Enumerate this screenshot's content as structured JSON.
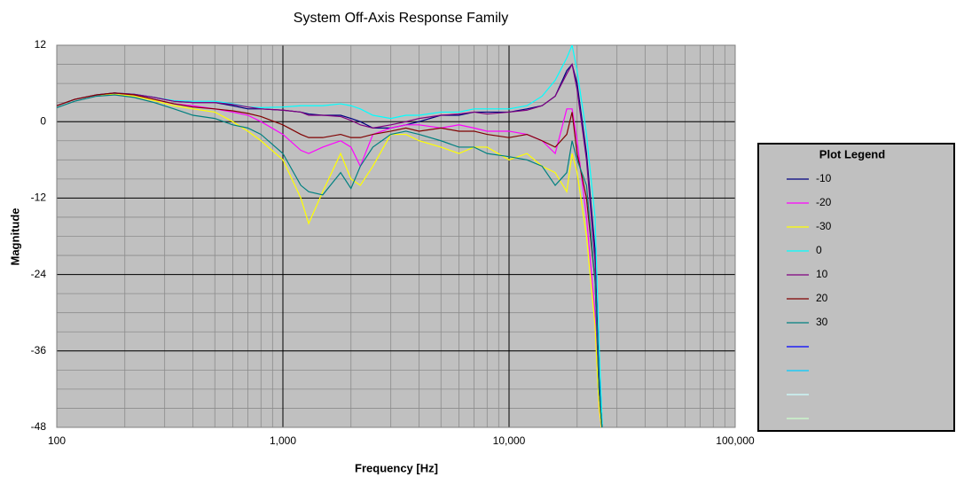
{
  "chart_data": {
    "type": "line",
    "title": "System Off-Axis Response Family",
    "x_label": "Frequency [Hz]",
    "y_label": "Magnitude",
    "xlog": true,
    "grid": true,
    "minor_grid": true,
    "legend": "right",
    "legend_title": "Plot Legend",
    "background": "#c0c0c0",
    "x": [
      100,
      120,
      150,
      180,
      220,
      270,
      330,
      400,
      500,
      600,
      700,
      800,
      1000,
      1200,
      1300,
      1500,
      1800,
      2000,
      2200,
      2500,
      3000,
      3500,
      4000,
      5000,
      6000,
      7000,
      8000,
      10000,
      12000,
      14000,
      16000,
      18000,
      19000,
      20000,
      22000,
      24000,
      25000,
      26000
    ],
    "xlim": [
      100,
      100000
    ],
    "xticks": [
      100,
      {
        "value": 1000,
        "label": "1,000"
      },
      {
        "value": 10000,
        "label": "10,000"
      },
      {
        "value": 100000,
        "label": "100,000"
      }
    ],
    "ylim": [
      -48,
      12
    ],
    "yticks": [
      -48,
      -36,
      -24,
      -12,
      0,
      12
    ],
    "series": [
      {
        "name": "-10",
        "color": "#000080",
        "values": [
          2.5,
          3.5,
          4.2,
          4.5,
          4.3,
          3.8,
          3.2,
          3,
          3,
          2.5,
          2,
          2,
          1.8,
          1.5,
          1.2,
          1,
          1,
          0.5,
          0,
          -1,
          -1,
          -0.5,
          0,
          1,
          1,
          1.5,
          1.5,
          1.5,
          2,
          2.5,
          4,
          8,
          9,
          6,
          -5,
          -20,
          -40,
          -50
        ]
      },
      {
        "name": "-20",
        "color": "#ff00ff",
        "values": [
          2.5,
          3.5,
          4.2,
          4.5,
          4.2,
          3.5,
          2.8,
          2.5,
          2,
          1.5,
          1,
          0,
          -2,
          -4.5,
          -5,
          -4,
          -3,
          -4,
          -7,
          -2,
          -1,
          -0.5,
          -0.5,
          -1,
          -0.5,
          -1,
          -1.5,
          -1.5,
          -2,
          -3,
          -5,
          2,
          2,
          -3,
          -15,
          -30,
          -45,
          -50
        ]
      },
      {
        "name": "-30",
        "color": "#ffff00",
        "values": [
          2.5,
          3.5,
          4.2,
          4.3,
          4,
          3.3,
          2.5,
          2,
          1.5,
          0,
          -1.5,
          -3,
          -6,
          -12,
          -16,
          -11,
          -5,
          -9,
          -10,
          -7,
          -2,
          -2,
          -3,
          -4,
          -5,
          -4,
          -4,
          -6,
          -5,
          -7,
          -8,
          -11,
          -5,
          -8,
          -18,
          -32,
          -45,
          -50
        ]
      },
      {
        "name": "0",
        "color": "#00ffff",
        "values": [
          2.5,
          3.5,
          4.2,
          4.5,
          4.3,
          3.8,
          3.3,
          3.2,
          3.2,
          2.8,
          2.3,
          2.2,
          2.3,
          2.5,
          2.5,
          2.5,
          2.8,
          2.5,
          2,
          1,
          0.5,
          1,
          1,
          1.5,
          1.5,
          2,
          2,
          2,
          2.5,
          4,
          6.5,
          10,
          12,
          8,
          -2,
          -15,
          -35,
          -50
        ]
      },
      {
        "name": "10",
        "color": "#800080",
        "values": [
          2.5,
          3.5,
          4.2,
          4.5,
          4.3,
          3.8,
          3.2,
          3,
          3,
          2.7,
          2.3,
          2,
          1.8,
          1.5,
          1,
          1,
          0.8,
          0.2,
          -0.5,
          -1,
          -0.5,
          0,
          0.5,
          1,
          1.2,
          1.5,
          1.2,
          1.5,
          1.8,
          2.5,
          4,
          7.5,
          9,
          5,
          -6,
          -22,
          -42,
          -50
        ]
      },
      {
        "name": "20",
        "color": "#800000",
        "values": [
          2.5,
          3.5,
          4.2,
          4.5,
          4.2,
          3.5,
          2.8,
          2.3,
          2,
          1.7,
          1.3,
          0.8,
          -0.5,
          -2,
          -2.5,
          -2.5,
          -2,
          -2.5,
          -2.5,
          -2,
          -1.5,
          -1,
          -1.5,
          -1,
          -1.5,
          -1.5,
          -2,
          -2.5,
          -2,
          -3,
          -4,
          -2,
          1.5,
          -5,
          -12,
          -25,
          -42,
          -50
        ]
      },
      {
        "name": "30",
        "color": "#008080",
        "values": [
          2.2,
          3.2,
          4,
          4.2,
          3.8,
          3,
          2,
          1,
          0.5,
          -0.5,
          -1,
          -2,
          -5,
          -10,
          -11,
          -11.5,
          -8,
          -10.5,
          -7,
          -4,
          -2,
          -1.5,
          -2,
          -3,
          -4,
          -4,
          -5,
          -5.5,
          -6,
          -7,
          -10,
          -8,
          -3,
          -6,
          -10,
          -25,
          -42,
          -50
        ]
      },
      {
        "color": "#0000ff",
        "values": [
          null,
          null,
          null,
          null,
          null,
          null,
          null,
          null,
          null,
          null,
          null,
          null,
          null,
          null,
          null,
          null,
          null,
          null,
          null,
          null,
          null,
          null,
          null,
          null,
          null,
          null,
          null,
          null,
          null,
          null,
          null,
          null,
          null,
          null,
          null,
          null,
          null,
          null
        ]
      },
      {
        "color": "#00ccff",
        "values": [
          null,
          null,
          null,
          null,
          null,
          null,
          null,
          null,
          null,
          null,
          null,
          null,
          null,
          null,
          null,
          null,
          null,
          null,
          null,
          null,
          null,
          null,
          null,
          null,
          null,
          null,
          null,
          null,
          null,
          null,
          null,
          null,
          null,
          null,
          null,
          null,
          null,
          null
        ]
      },
      {
        "color": "#ccffff",
        "values": [
          null,
          null,
          null,
          null,
          null,
          null,
          null,
          null,
          null,
          null,
          null,
          null,
          null,
          null,
          null,
          null,
          null,
          null,
          null,
          null,
          null,
          null,
          null,
          null,
          null,
          null,
          null,
          null,
          null,
          null,
          null,
          null,
          null,
          null,
          null,
          null,
          null,
          null
        ]
      },
      {
        "color": "#ccffcc",
        "values": [
          null,
          null,
          null,
          null,
          null,
          null,
          null,
          null,
          null,
          null,
          null,
          null,
          null,
          null,
          null,
          null,
          null,
          null,
          null,
          null,
          null,
          null,
          null,
          null,
          null,
          null,
          null,
          null,
          null,
          null,
          null,
          null,
          null,
          null,
          null,
          null,
          null,
          null
        ]
      }
    ]
  }
}
